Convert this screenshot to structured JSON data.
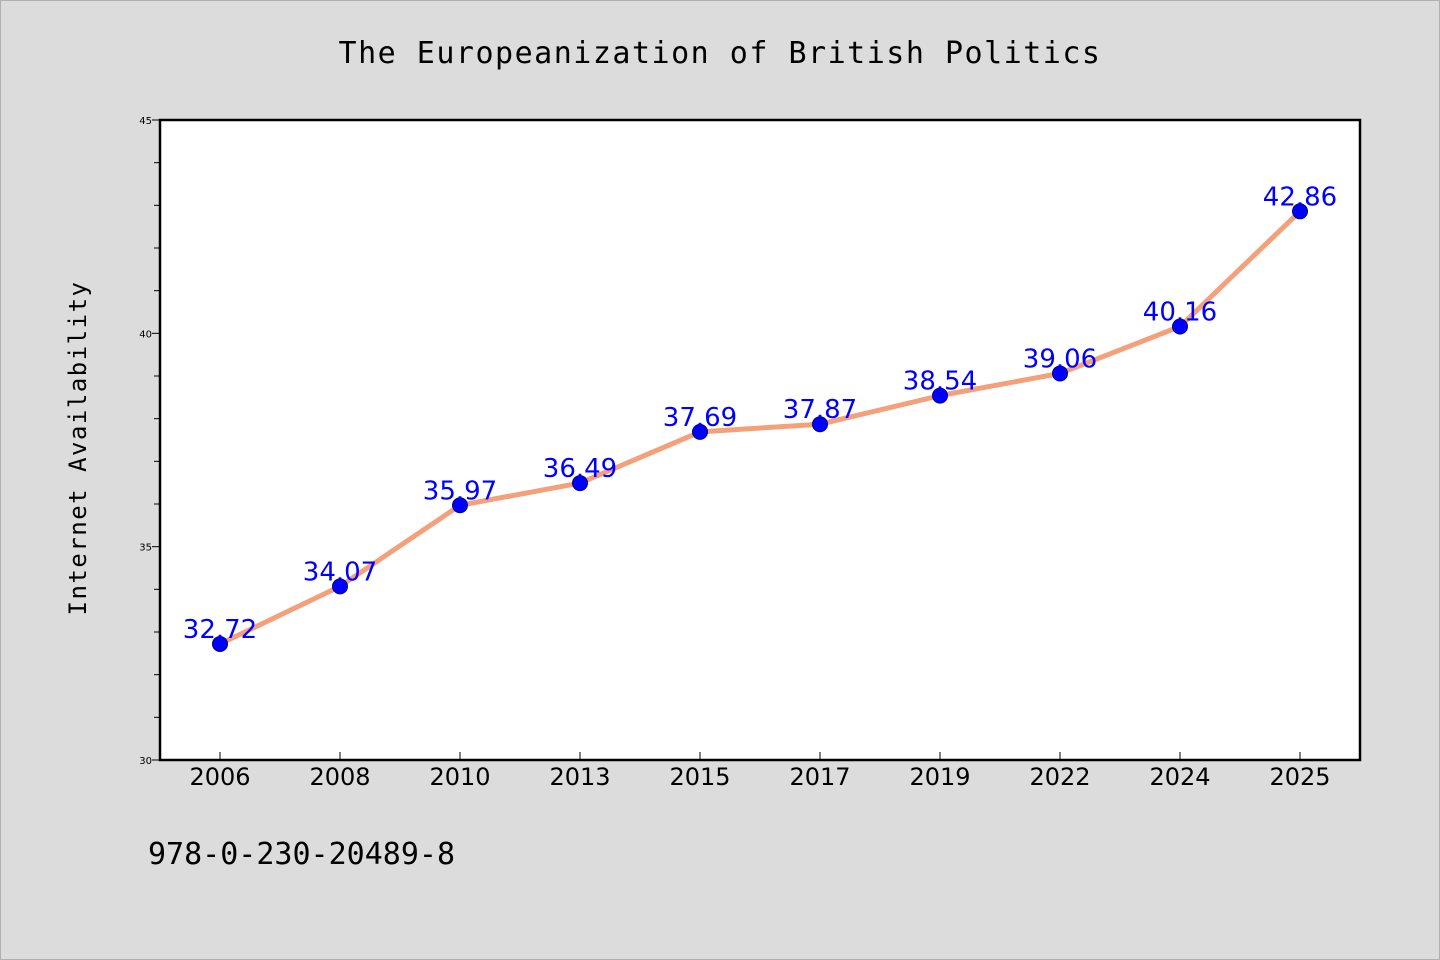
{
  "colors": {
    "background": "#dcdcdc",
    "plot_background": "#ffffff",
    "axis": "#000000",
    "line": "#f4a07a",
    "marker": "#0000ff",
    "marker_edge": "#00008b",
    "data_label": "#0000ff",
    "text": "#000000"
  },
  "footer": {
    "isbn": "978-0-230-20489-8"
  },
  "chart_data": {
    "type": "line",
    "title": "The Europeanization of British Politics",
    "xlabel": "",
    "ylabel": "Internet Availability",
    "categories": [
      "2006",
      "2008",
      "2010",
      "2013",
      "2015",
      "2017",
      "2019",
      "2022",
      "2024",
      "2025"
    ],
    "series": [
      {
        "values": [
          32.72,
          34.07,
          35.97,
          36.49,
          37.69,
          37.87,
          38.54,
          39.06,
          40.16,
          42.86
        ],
        "data_labels": [
          "32.72",
          "34.07",
          "35.97",
          "36.49",
          "37.69",
          "37.87",
          "38.54",
          "39.06",
          "40.16",
          "42.86"
        ]
      }
    ],
    "ylim": [
      30,
      45
    ],
    "yticks_major": [
      30,
      35,
      40,
      45
    ],
    "yticks_minor_step": 1,
    "grid": false,
    "legend": "none"
  }
}
